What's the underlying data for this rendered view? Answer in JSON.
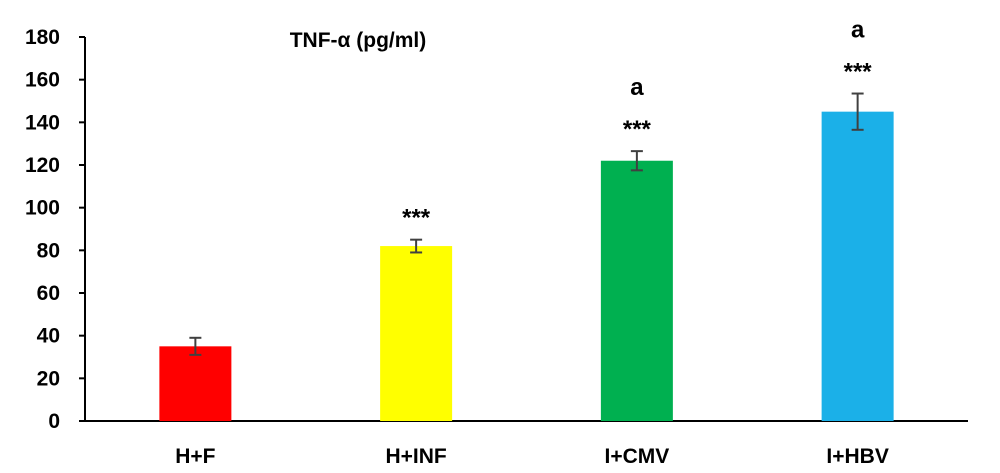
{
  "chart_data": {
    "type": "bar",
    "title": "TNF-α (pg/ml)",
    "categories": [
      "H+F",
      "H+INF",
      "I+CMV",
      "I+HBV"
    ],
    "values": [
      35,
      82,
      122,
      145
    ],
    "errors": [
      4,
      3,
      4.5,
      8.5
    ],
    "colors": [
      "#ff0000",
      "#ffff00",
      "#00b050",
      "#1bb0e8"
    ],
    "significance": [
      "",
      "***",
      "***",
      "***"
    ],
    "group_marks": [
      "",
      "",
      "a",
      "a"
    ],
    "ylim": [
      0,
      180
    ],
    "yticks": [
      0,
      20,
      40,
      60,
      80,
      100,
      120,
      140,
      160,
      180
    ],
    "grid": false,
    "legend": "none"
  }
}
